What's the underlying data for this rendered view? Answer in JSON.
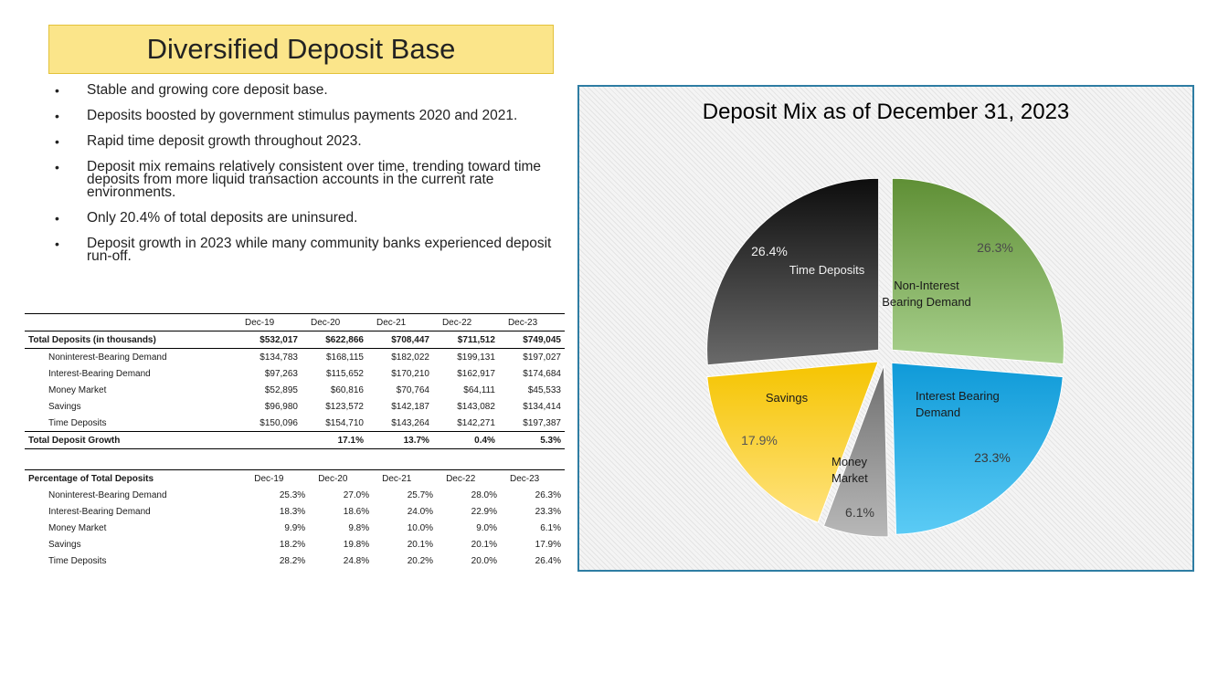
{
  "slide": {
    "title": "Diversified Deposit Base",
    "bullets": [
      "Stable and growing core deposit base.",
      "Deposits boosted by government stimulus payments 2020 and 2021.",
      "Rapid time deposit growth throughout 2023.",
      "Deposit mix remains relatively consistent over time, trending toward time deposits from more liquid transaction accounts in the current rate environments.",
      "Only 20.4% of total deposits are uninsured.",
      "Deposit growth in 2023 while many community banks experienced deposit run-off."
    ]
  },
  "deposits_table": {
    "columns": [
      "Dec-19",
      "Dec-20",
      "Dec-21",
      "Dec-22",
      "Dec-23"
    ],
    "total": {
      "label": "Total Deposits (in thousands)",
      "values": [
        "$532,017",
        "$622,866",
        "$708,447",
        "$711,512",
        "$749,045"
      ]
    },
    "rows": [
      {
        "label": "Noninterest-Bearing Demand",
        "values": [
          "$134,783",
          "$168,115",
          "$182,022",
          "$199,131",
          "$197,027"
        ]
      },
      {
        "label": "Interest-Bearing Demand",
        "values": [
          "$97,263",
          "$115,652",
          "$170,210",
          "$162,917",
          "$174,684"
        ]
      },
      {
        "label": "Money Market",
        "values": [
          "$52,895",
          "$60,816",
          "$70,764",
          "$64,111",
          "$45,533"
        ]
      },
      {
        "label": "Savings",
        "values": [
          "$96,980",
          "$123,572",
          "$142,187",
          "$143,082",
          "$134,414"
        ]
      },
      {
        "label": "Time Deposits",
        "values": [
          "$150,096",
          "$154,710",
          "$143,264",
          "$142,271",
          "$197,387"
        ]
      }
    ],
    "growth": {
      "label": "Total Deposit Growth",
      "values": [
        "",
        "17.1%",
        "13.7%",
        "0.4%",
        "5.3%"
      ]
    }
  },
  "percent_table": {
    "header_label": "Percentage of Total Deposits",
    "columns": [
      "Dec-19",
      "Dec-20",
      "Dec-21",
      "Dec-22",
      "Dec-23"
    ],
    "rows": [
      {
        "label": "Noninterest-Bearing Demand",
        "values": [
          "25.3%",
          "27.0%",
          "25.7%",
          "28.0%",
          "26.3%"
        ]
      },
      {
        "label": "Interest-Bearing Demand",
        "values": [
          "18.3%",
          "18.6%",
          "24.0%",
          "22.9%",
          "23.3%"
        ]
      },
      {
        "label": "Money Market",
        "values": [
          "9.9%",
          "9.8%",
          "10.0%",
          "9.0%",
          "6.1%"
        ]
      },
      {
        "label": "Savings",
        "values": [
          "18.2%",
          "19.8%",
          "20.1%",
          "20.1%",
          "17.9%"
        ]
      },
      {
        "label": "Time Deposits",
        "values": [
          "28.2%",
          "24.8%",
          "20.2%",
          "20.0%",
          "26.4%"
        ]
      }
    ]
  },
  "chart_data": {
    "type": "pie",
    "title": "Deposit Mix as of December 31, 2023",
    "slices": [
      {
        "label": "Non-Interest Bearing Demand",
        "display": "26.3%",
        "value": 26.3,
        "color_light": "#a9d18e",
        "color_dark": "#5f8f35"
      },
      {
        "label": "Interest Bearing Demand",
        "display": "23.3%",
        "value": 23.3,
        "color_light": "#5bcbf5",
        "color_dark": "#0f9ad8"
      },
      {
        "label": "Money Market",
        "display": "6.1%",
        "value": 6.1,
        "color_light": "#b8b8b8",
        "color_dark": "#6e6e6e"
      },
      {
        "label": "Savings",
        "display": "17.9%",
        "value": 17.9,
        "color_light": "#ffe380",
        "color_dark": "#f5c400"
      },
      {
        "label": "Time Deposits",
        "display": "26.4%",
        "value": 26.4,
        "color_light": "#6a6a6a",
        "color_dark": "#0d0d0d"
      }
    ]
  }
}
